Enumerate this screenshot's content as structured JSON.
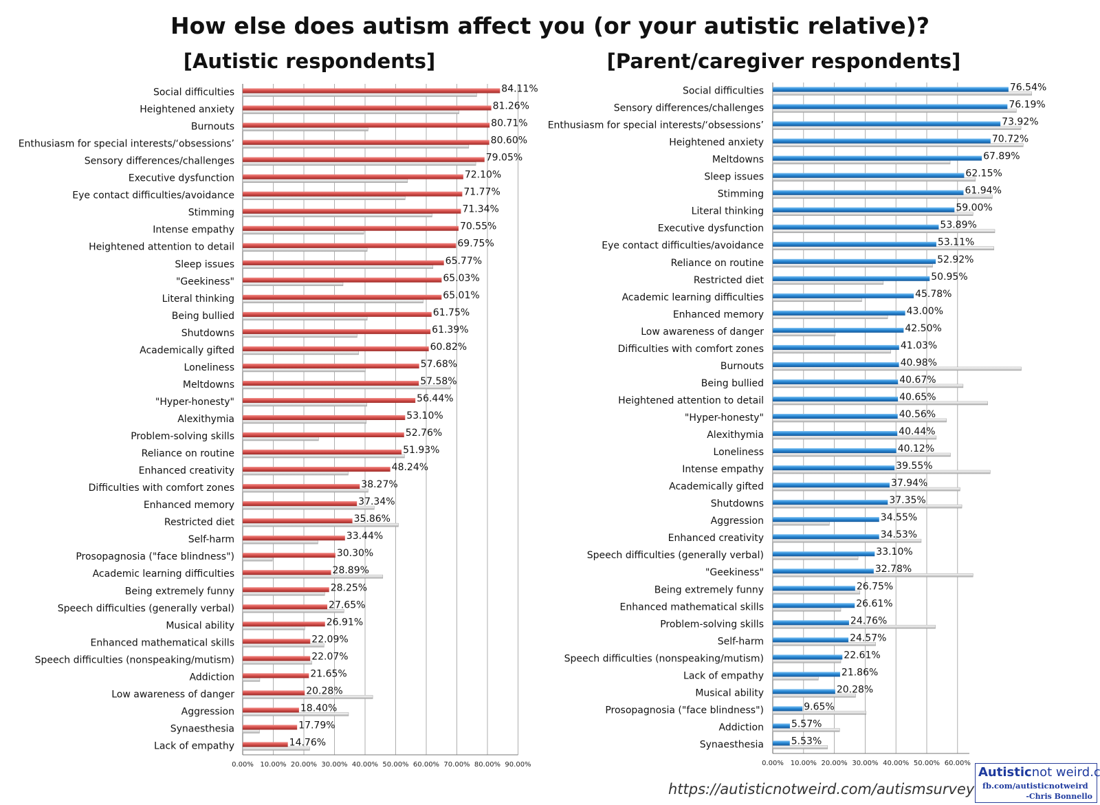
{
  "title": "How else does autism affect you (or your autistic relative)?",
  "url": "https://autisticnotweird.com/autismsurvey",
  "logo": {
    "brand_bold": "Autistic",
    "brand_rest": "not weird.com",
    "fb": "fb.com/autisticnotweird",
    "signature": "-Chris Bonnello"
  },
  "colors": {
    "autistic": "#d9534f",
    "parent": "#2a8ad6",
    "comparison": "#d9d9d9"
  },
  "chart_data": [
    {
      "type": "bar",
      "orientation": "horizontal",
      "title": "[Autistic respondents]",
      "xlim": [
        0,
        90
      ],
      "xticks": [
        "0.00%",
        "10.00%",
        "20.00%",
        "30.00%",
        "40.00%",
        "50.00%",
        "60.00%",
        "70.00%",
        "80.00%",
        "90.00%"
      ],
      "grid": true,
      "categories": [
        "Social difficulties",
        "Heightened anxiety",
        "Burnouts",
        "Enthusiasm for special interests/‘obsessions’",
        "Sensory differences/challenges",
        "Executive dysfunction",
        "Eye contact difficulties/avoidance",
        "Stimming",
        "Intense empathy",
        "Heightened attention to detail",
        "Sleep issues",
        "\"Geekiness\"",
        "Literal thinking",
        "Being bullied",
        "Shutdowns",
        "Academically gifted",
        "Loneliness",
        "Meltdowns",
        "\"Hyper-honesty\"",
        "Alexithymia",
        "Problem-solving skills",
        "Reliance on routine",
        "Enhanced creativity",
        "Difficulties with comfort zones",
        "Enhanced memory",
        "Restricted diet",
        "Self-harm",
        "Prosopagnosia (\"face blindness\")",
        "Academic learning difficulties",
        "Being extremely funny",
        "Speech difficulties (generally verbal)",
        "Musical ability",
        "Enhanced mathematical skills",
        "Speech difficulties (nonspeaking/mutism)",
        "Addiction",
        "Low awareness of danger",
        "Aggression",
        "Synaesthesia",
        "Lack of empathy"
      ],
      "values": [
        84.11,
        81.26,
        80.71,
        80.6,
        79.05,
        72.1,
        71.77,
        71.34,
        70.55,
        69.75,
        65.77,
        65.03,
        65.01,
        61.75,
        61.39,
        60.82,
        57.68,
        57.58,
        56.44,
        53.1,
        52.76,
        51.93,
        48.24,
        38.27,
        37.34,
        35.86,
        33.44,
        30.3,
        28.89,
        28.25,
        27.65,
        26.91,
        22.09,
        22.07,
        21.65,
        20.28,
        18.4,
        17.79,
        14.76
      ],
      "labels": [
        "84.11%",
        "81.26%",
        "80.71%",
        "80.60%",
        "79.05%",
        "72.10%",
        "71.77%",
        "71.34%",
        "70.55%",
        "69.75%",
        "65.77%",
        "65.03%",
        "65.01%",
        "61.75%",
        "61.39%",
        "60.82%",
        "57.68%",
        "57.58%",
        "56.44%",
        "53.10%",
        "52.76%",
        "51.93%",
        "48.24%",
        "38.27%",
        "37.34%",
        "35.86%",
        "33.44%",
        "30.30%",
        "28.89%",
        "28.25%",
        "27.65%",
        "26.91%",
        "22.09%",
        "22.07%",
        "21.65%",
        "20.28%",
        "18.40%",
        "17.79%",
        "14.76%"
      ],
      "comparison_values": [
        76.5,
        70.7,
        40.98,
        73.9,
        76.2,
        53.9,
        53.1,
        61.9,
        39.6,
        40.7,
        62.2,
        32.8,
        59.0,
        40.7,
        37.4,
        37.9,
        40.1,
        67.9,
        40.6,
        40.4,
        24.8,
        52.9,
        34.5,
        41.0,
        43.0,
        50.9,
        24.6,
        9.7,
        45.8,
        26.8,
        33.1,
        20.3,
        26.6,
        22.6,
        5.6,
        42.5,
        34.6,
        5.5,
        21.9
      ]
    },
    {
      "type": "bar",
      "orientation": "horizontal",
      "title": "[Parent/caregiver respondents]",
      "xlim": [
        0,
        90
      ],
      "xticks": [
        "0.00%",
        "10.00%",
        "20.00%",
        "30.00%",
        "40.00%",
        "50.00%",
        "60.00%"
      ],
      "grid": true,
      "categories": [
        "Social difficulties",
        "Sensory differences/challenges",
        "Enthusiasm for special interests/‘obsessions’",
        "Heightened anxiety",
        "Meltdowns",
        "Sleep issues",
        "Stimming",
        "Literal thinking",
        "Executive dysfunction",
        "Eye contact difficulties/avoidance",
        "Reliance on routine",
        "Restricted diet",
        "Academic learning difficulties",
        "Enhanced memory",
        "Low awareness of danger",
        "Difficulties with comfort zones",
        "Burnouts",
        "Being bullied",
        "Heightened attention to detail",
        "\"Hyper-honesty\"",
        "Alexithymia",
        "Loneliness",
        "Intense empathy",
        "Academically gifted",
        "Shutdowns",
        "Aggression",
        "Enhanced creativity",
        "Speech difficulties (generally verbal)",
        "\"Geekiness\"",
        "Being extremely funny",
        "Enhanced mathematical skills",
        "Problem-solving skills",
        "Self-harm",
        "Speech difficulties (nonspeaking/mutism)",
        "Lack of empathy",
        "Musical ability",
        "Prosopagnosia (\"face blindness\")",
        "Addiction",
        "Synaesthesia"
      ],
      "values": [
        76.54,
        76.19,
        73.92,
        70.72,
        67.89,
        62.15,
        61.94,
        59.0,
        53.89,
        53.11,
        52.92,
        50.95,
        45.78,
        43.0,
        42.5,
        41.03,
        40.98,
        40.67,
        40.65,
        40.56,
        40.44,
        40.12,
        39.55,
        37.94,
        37.35,
        34.55,
        34.53,
        33.1,
        32.78,
        26.75,
        26.61,
        24.76,
        24.57,
        22.61,
        21.86,
        20.28,
        9.65,
        5.57,
        5.53
      ],
      "labels": [
        "76.54%",
        "76.19%",
        "73.92%",
        "70.72%",
        "67.89%",
        "62.15%",
        "61.94%",
        "59.00%",
        "53.89%",
        "53.11%",
        "52.92%",
        "50.95%",
        "45.78%",
        "43.00%",
        "42.50%",
        "41.03%",
        "40.98%",
        "40.67%",
        "40.65%",
        "40.56%",
        "40.44%",
        "40.12%",
        "39.55%",
        "37.94%",
        "37.35%",
        "34.55%",
        "34.53%",
        "33.10%",
        "32.78%",
        "26.75%",
        "26.61%",
        "24.76%",
        "24.57%",
        "22.61%",
        "21.86%",
        "20.28%",
        "9.65%",
        "5.57%",
        "5.53%"
      ],
      "comparison_values": [
        84.1,
        79.1,
        80.6,
        81.3,
        57.6,
        65.8,
        71.3,
        65.0,
        72.1,
        71.8,
        51.9,
        35.9,
        28.9,
        37.3,
        20.3,
        38.3,
        80.7,
        61.8,
        69.8,
        56.4,
        53.1,
        57.7,
        70.6,
        60.8,
        61.4,
        18.4,
        48.2,
        27.7,
        65.0,
        28.3,
        22.1,
        52.8,
        33.4,
        22.1,
        14.8,
        26.9,
        30.3,
        21.7,
        17.8
      ]
    }
  ]
}
